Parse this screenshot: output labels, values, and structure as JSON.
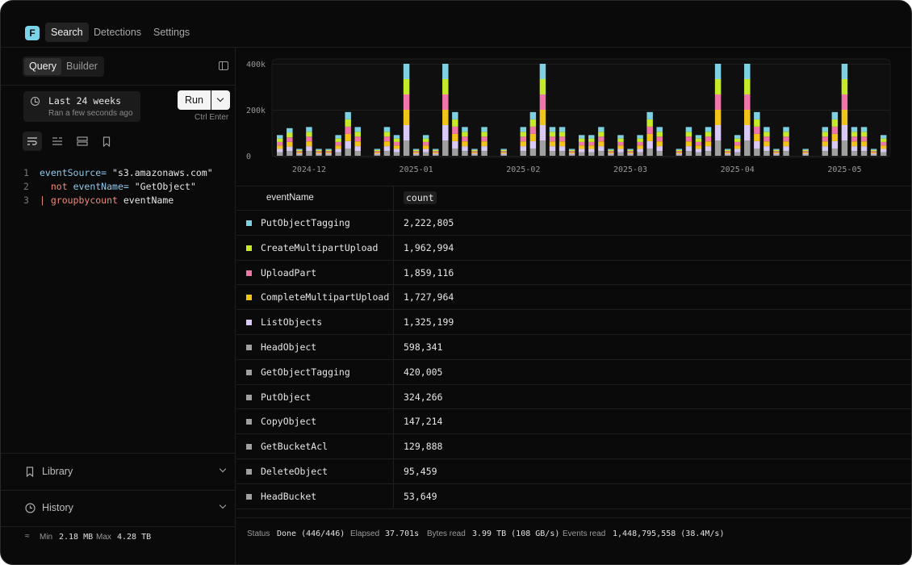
{
  "app": {
    "logo_letter": "F",
    "nav": [
      "Search",
      "Detections",
      "Settings"
    ]
  },
  "left_panel": {
    "tabs": [
      "Query",
      "Builder"
    ],
    "time_range": {
      "label": "Last 24 weeks",
      "sub": "Ran a few seconds ago"
    },
    "run_label": "Run",
    "shortcut": "Ctrl Enter",
    "query_lines": [
      {
        "n": "1",
        "key": "eventSource=",
        "str": " \"s3.amazonaws.com\""
      },
      {
        "n": "2",
        "kw": "not",
        "key": " eventName=",
        "str": " \"GetObject\""
      },
      {
        "n": "3",
        "pipe": "|",
        "fn": " groupbycount",
        "arg": " eventName"
      }
    ],
    "library_label": "Library",
    "history_label": "History",
    "footer": {
      "min_label": "Min",
      "min_value": "2.18 MB",
      "max_label": "Max",
      "max_value": "4.28 TB"
    }
  },
  "chart_data": {
    "type": "bar",
    "stacked": true,
    "y_ticks": [
      "400k",
      "200k",
      "0"
    ],
    "ylim": [
      0,
      400000
    ],
    "x_tick_labels": [
      "2024-12",
      "2025-01",
      "2025-02",
      "2025-03",
      "2025-04",
      "2025-05"
    ],
    "x_tick_bar_index": [
      3,
      14,
      25,
      36,
      47,
      58
    ],
    "values": [
      90000,
      120000,
      30000,
      125000,
      30000,
      30000,
      90000,
      190000,
      125000,
      0,
      30000,
      125000,
      90000,
      400000,
      30000,
      90000,
      30000,
      400000,
      190000,
      125000,
      30000,
      125000,
      0,
      30000,
      0,
      125000,
      190000,
      400000,
      125000,
      125000,
      30000,
      90000,
      90000,
      125000,
      30000,
      90000,
      30000,
      90000,
      190000,
      125000,
      0,
      30000,
      125000,
      90000,
      125000,
      400000,
      30000,
      90000,
      400000,
      190000,
      125000,
      30000,
      125000,
      0,
      30000,
      0,
      125000,
      190000,
      400000,
      125000,
      125000,
      30000,
      90000
    ],
    "series_colors": [
      "#a0a0a0",
      "#d9c9f7",
      "#f2c318",
      "#f075a8",
      "#c6ea2a",
      "#7ed0e3"
    ]
  },
  "table": {
    "headers": {
      "name": "eventName",
      "count": "count"
    },
    "rows": [
      {
        "name": "PutObjectTagging",
        "count": "2,222,805",
        "color": "#7ed0e3"
      },
      {
        "name": "CreateMultipartUpload",
        "count": "1,962,994",
        "color": "#c6ea2a"
      },
      {
        "name": "UploadPart",
        "count": "1,859,116",
        "color": "#f075a8"
      },
      {
        "name": "CompleteMultipartUpload",
        "count": "1,727,964",
        "color": "#f2c318"
      },
      {
        "name": "ListObjects",
        "count": "1,325,199",
        "color": "#d9c9f7"
      },
      {
        "name": "HeadObject",
        "count": "598,341",
        "color": "#a0a0a0"
      },
      {
        "name": "GetObjectTagging",
        "count": "420,005",
        "color": "#a0a0a0"
      },
      {
        "name": "PutObject",
        "count": "324,266",
        "color": "#a0a0a0"
      },
      {
        "name": "CopyObject",
        "count": "147,214",
        "color": "#a0a0a0"
      },
      {
        "name": "GetBucketAcl",
        "count": "129,888",
        "color": "#a0a0a0"
      },
      {
        "name": "DeleteObject",
        "count": "95,459",
        "color": "#a0a0a0"
      },
      {
        "name": "HeadBucket",
        "count": "53,649",
        "color": "#a0a0a0"
      }
    ]
  },
  "status": {
    "status_label": "Status",
    "status_value": "Done (446/446)",
    "elapsed_label": "Elapsed",
    "elapsed_value": "37.701s",
    "bytes_label": "Bytes read",
    "bytes_value": "3.99 TB (108 GB/s)",
    "events_label": "Events read",
    "events_value": "1,448,795,558 (38.4M/s)"
  }
}
